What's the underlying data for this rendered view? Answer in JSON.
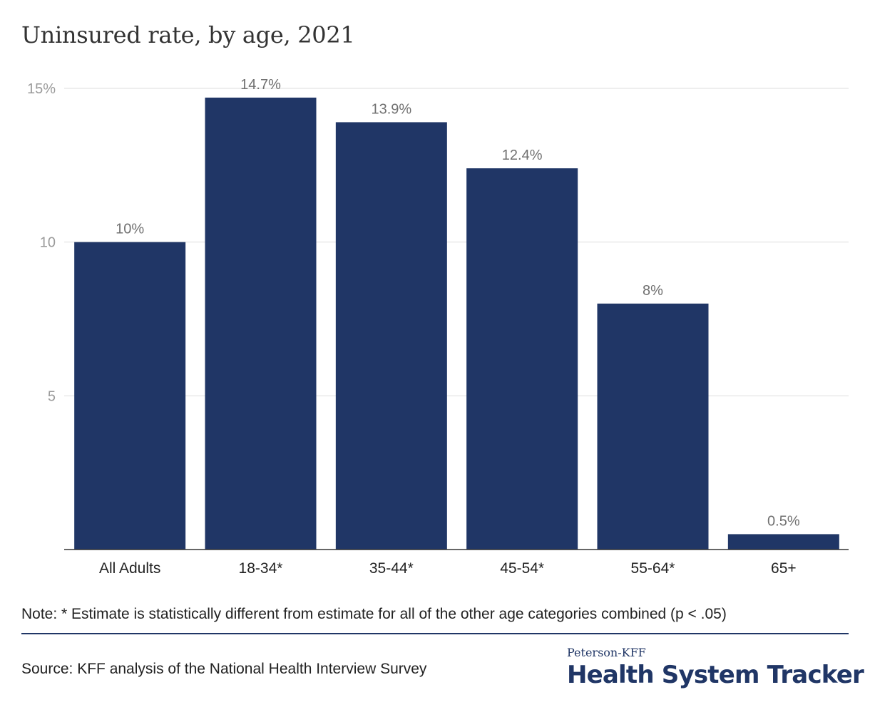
{
  "title": "Uninsured rate, by age, 2021",
  "chart_data": {
    "type": "bar",
    "title": "Uninsured rate, by age, 2021",
    "categories": [
      "All Adults",
      "18-34*",
      "35-44*",
      "45-54*",
      "55-64*",
      "65+"
    ],
    "values": [
      10,
      14.7,
      13.9,
      12.4,
      8,
      0.5
    ],
    "data_labels": [
      "10%",
      "14.7%",
      "13.9%",
      "12.4%",
      "8%",
      "0.5%"
    ],
    "ylim": [
      0,
      15
    ],
    "yticks": [
      5,
      10,
      15
    ],
    "ytick_labels": [
      "5",
      "10",
      "15%"
    ],
    "xlabel": "",
    "ylabel": "",
    "grid": true,
    "bar_color": "#203666"
  },
  "note": "Note: * Estimate is statistically different from estimate for all of the other age categories combined (p < .05)",
  "source": "Source: KFF analysis of the National Health Interview Survey",
  "brand": {
    "small": "Peterson-KFF",
    "big": "Health System Tracker",
    "color": "#203666"
  }
}
